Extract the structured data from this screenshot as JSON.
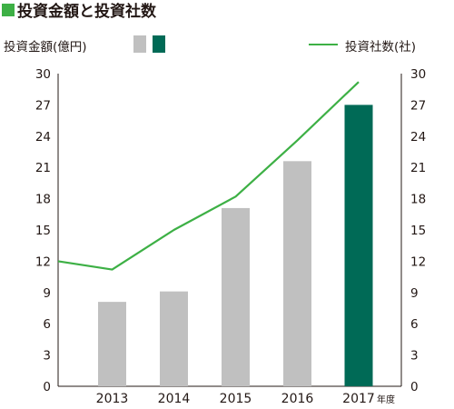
{
  "chart_data": {
    "type": "bar",
    "title": "投資金額と投資社数",
    "categories": [
      "2013",
      "2014",
      "2015",
      "2016",
      "2017"
    ],
    "x_unit": "年度",
    "series": [
      {
        "name": "投資金額(億円)",
        "type": "bar",
        "axis": "left",
        "values": [
          8.1,
          9.1,
          17.1,
          21.6,
          27.0
        ],
        "colors": [
          "#c0c0c0",
          "#c0c0c0",
          "#c0c0c0",
          "#c0c0c0",
          "#006a56"
        ]
      },
      {
        "name": "投資社数(社)",
        "type": "line",
        "axis": "right",
        "color": "#3db045",
        "values": [
          11.2,
          15.0,
          18.2,
          23.6,
          29.2
        ],
        "start_value": 12.0
      }
    ],
    "ylim": [
      0,
      30
    ],
    "y_ticks": [
      0,
      3,
      6,
      9,
      12,
      15,
      18,
      21,
      24,
      27,
      30
    ],
    "y2lim": [
      0,
      30
    ],
    "y2_ticks": [
      0,
      3,
      6,
      9,
      12,
      15,
      18,
      21,
      24,
      27,
      30
    ],
    "grid": false,
    "legend_placement": "top",
    "colors": {
      "title_square": "#3db045",
      "bar_gray": "#c0c0c0",
      "bar_dark": "#006a56",
      "line": "#3db045",
      "axis": "#231815"
    }
  }
}
